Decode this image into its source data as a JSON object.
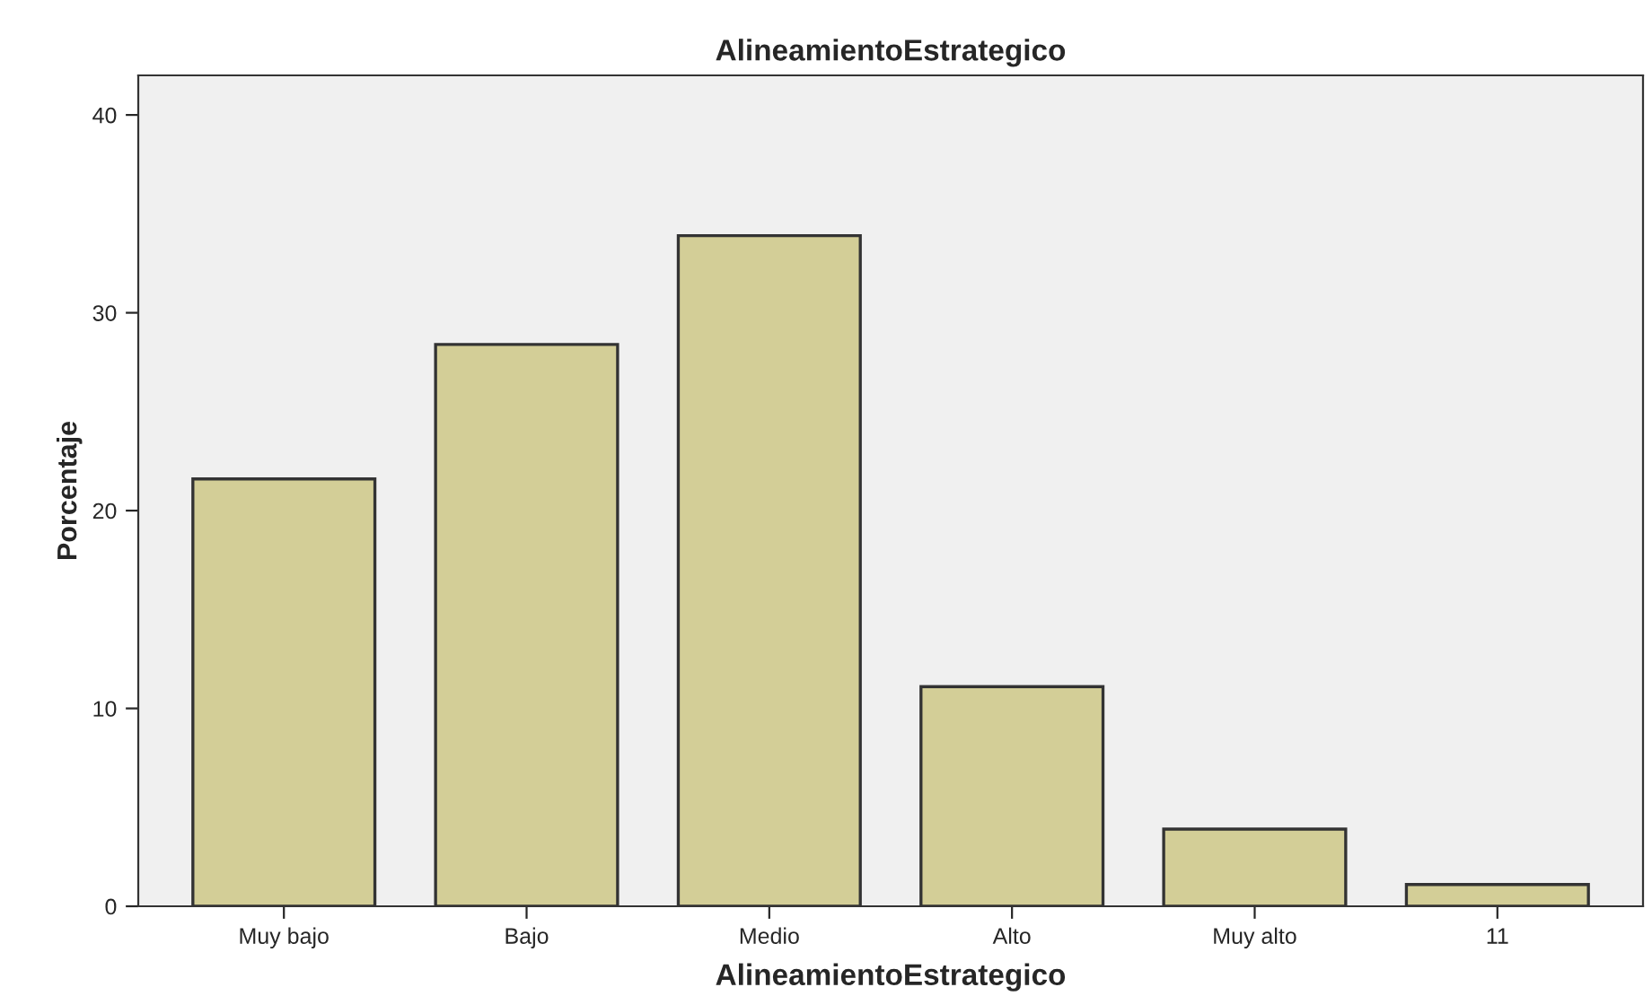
{
  "chart_data": {
    "type": "bar",
    "title": "AlineamientoEstrategico",
    "xlabel": "AlineamientoEstrategico",
    "ylabel": "Porcentaje",
    "categories": [
      "Muy bajo",
      "Bajo",
      "Medio",
      "Alto",
      "Muy alto",
      "11"
    ],
    "values": [
      21.6,
      28.4,
      33.9,
      11.1,
      3.9,
      1.1
    ],
    "color": "#d3ce97",
    "ylim": [
      0,
      42
    ],
    "yticks": [
      0,
      10,
      20,
      30,
      40
    ],
    "grid": false
  }
}
